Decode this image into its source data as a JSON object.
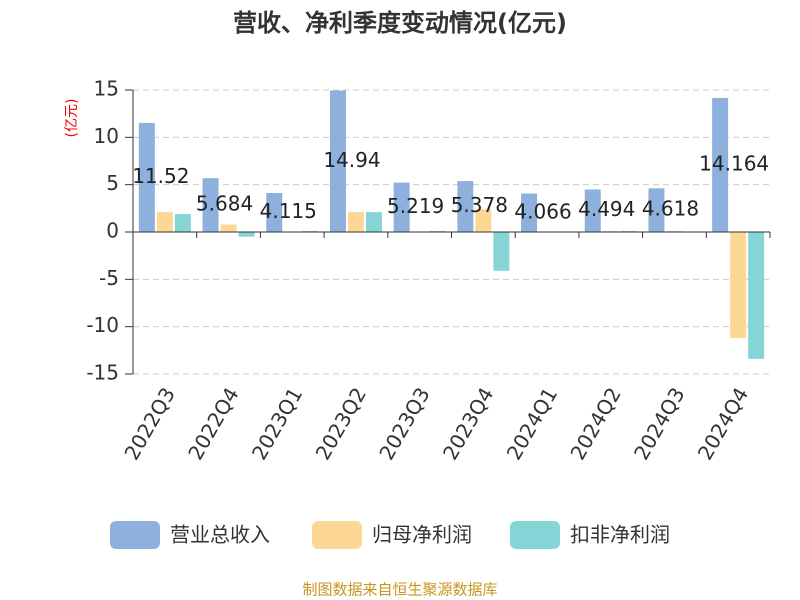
{
  "chart_data": {
    "type": "bar",
    "title": "营收、净利季度变动情况(亿元)",
    "y_label": "(亿元)",
    "source": "制图数据来自恒生聚源数据库",
    "categories": [
      "2022Q3",
      "2022Q4",
      "2023Q1",
      "2023Q2",
      "2023Q3",
      "2023Q4",
      "2024Q1",
      "2024Q2",
      "2024Q3",
      "2024Q4"
    ],
    "series": [
      {
        "name": "营业总收入",
        "color": "#8eb0dd",
        "values": [
          11.52,
          5.684,
          4.115,
          14.94,
          5.219,
          5.378,
          4.066,
          4.494,
          4.618,
          14.164
        ]
      },
      {
        "name": "归母净利润",
        "color": "#fdd796",
        "values": [
          2.1,
          0.8,
          0.05,
          2.1,
          0.05,
          2.4,
          0.02,
          0.1,
          0.1,
          -11.2
        ]
      },
      {
        "name": "扣非净利润",
        "color": "#86d5d6",
        "values": [
          1.9,
          -0.5,
          0.1,
          2.1,
          0.1,
          -4.1,
          0.02,
          0.1,
          0.05,
          -13.4
        ]
      }
    ],
    "ylim": [
      -15,
      15
    ],
    "yticks": [
      -15,
      -10,
      -5,
      0,
      5,
      10,
      15
    ],
    "grid": true
  }
}
